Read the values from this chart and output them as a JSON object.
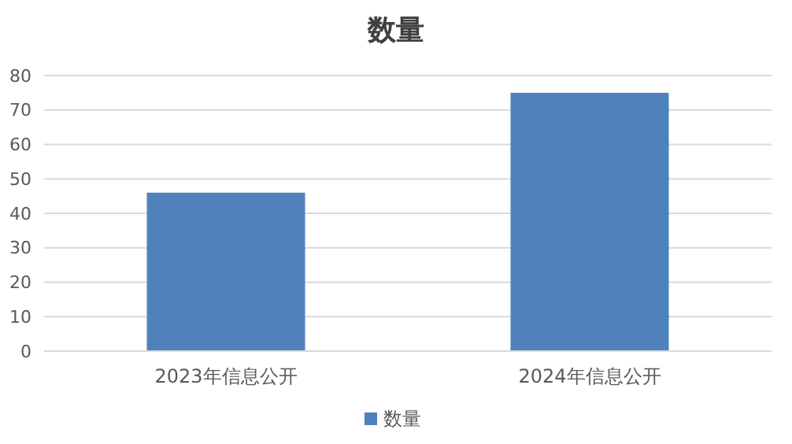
{
  "chart_data": {
    "type": "bar",
    "title": "数量",
    "categories": [
      "2023年信息公开",
      "2024年信息公开"
    ],
    "series": [
      {
        "name": "数量",
        "color": "#4f81bd",
        "values": [
          46,
          75
        ]
      }
    ],
    "ylim": [
      0,
      80
    ],
    "yticks": [
      0,
      10,
      20,
      30,
      40,
      50,
      60,
      70,
      80
    ],
    "grid": "y",
    "legend": "bottom"
  }
}
